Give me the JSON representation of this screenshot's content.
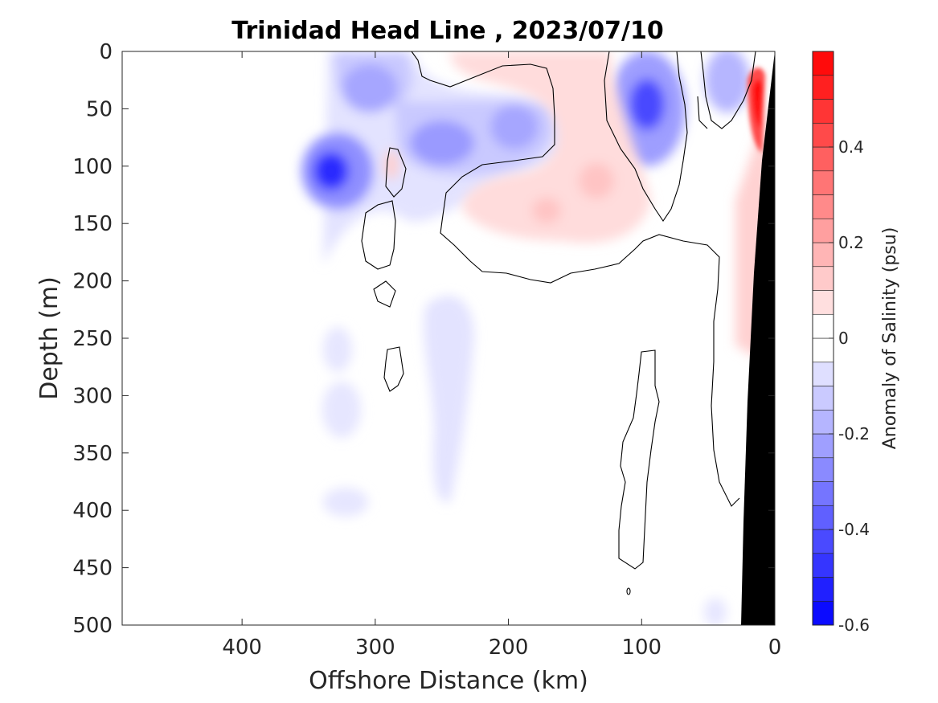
{
  "chart_data": {
    "type": "heatmap",
    "title": "Trinidad Head Line , 2023/07/10",
    "xlabel": "Offshore Distance (km)",
    "ylabel": "Depth (m)",
    "xlim": [
      490,
      0
    ],
    "ylim": [
      0,
      500
    ],
    "x_reversed": true,
    "y_reversed": true,
    "xticks": [
      400,
      300,
      200,
      100,
      0
    ],
    "yticks": [
      0,
      50,
      100,
      150,
      200,
      250,
      300,
      350,
      400,
      450,
      500
    ],
    "colorbar": {
      "label": "Anomaly of Salinity (psu)",
      "range": [
        -0.6,
        0.6
      ],
      "ticks": [
        -0.6,
        -0.4,
        -0.2,
        0,
        0.2,
        0.4
      ],
      "tick_labels": [
        "-0.6",
        "-0.4",
        "-0.2",
        "0",
        "0.2",
        "0.4"
      ],
      "levels": [
        -0.6,
        -0.55,
        -0.5,
        -0.45,
        -0.4,
        -0.35,
        -0.3,
        -0.25,
        -0.2,
        -0.15,
        -0.1,
        -0.05,
        0,
        0.05,
        0.1,
        0.15,
        0.2,
        0.25,
        0.3,
        0.35,
        0.4,
        0.45,
        0.5,
        0.55,
        0.6
      ],
      "colormap": "blue-white-red",
      "min_color": "#0000ff",
      "max_color": "#ff0000",
      "mid_color": "#ffffff"
    },
    "contour_level": 0,
    "bathymetry_color": "#000000",
    "features": [
      {
        "label": "low-salinity core",
        "x": 332,
        "y": 105,
        "value": -0.5
      },
      {
        "label": "low-salinity core",
        "x": 310,
        "y": 35,
        "value": -0.25
      },
      {
        "label": "low-salinity core",
        "x": 255,
        "y": 80,
        "value": -0.3
      },
      {
        "label": "low-salinity core",
        "x": 210,
        "y": 65,
        "value": -0.25
      },
      {
        "label": "low-salinity core",
        "x": 92,
        "y": 50,
        "value": -0.45
      },
      {
        "label": "low-salinity core",
        "x": 38,
        "y": 20,
        "value": -0.25
      },
      {
        "label": "high-salinity core",
        "x": 18,
        "y": 55,
        "value": 0.5
      },
      {
        "label": "high-salinity core",
        "x": 150,
        "y": 125,
        "value": 0.1
      },
      {
        "label": "high-salinity core",
        "x": 130,
        "y": 110,
        "value": 0.1
      },
      {
        "label": "weak fresh patch",
        "x": 250,
        "y": 310,
        "value": -0.05
      },
      {
        "label": "weak fresh patch",
        "x": 325,
        "y": 320,
        "value": -0.05
      }
    ],
    "grid": false
  }
}
